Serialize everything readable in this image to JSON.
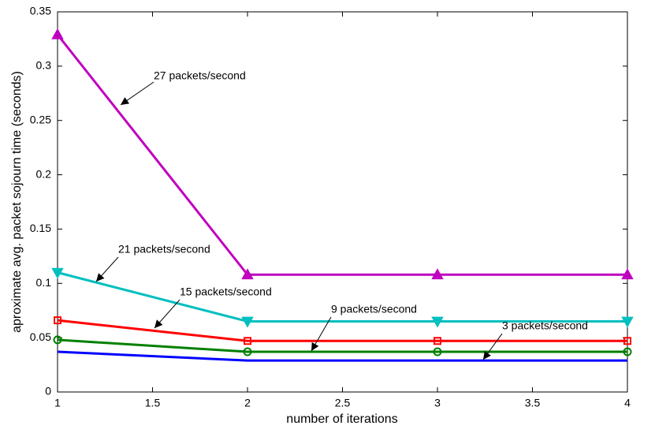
{
  "chart_data": {
    "type": "line",
    "x_label": "number of iterations",
    "y_label": "aproximate avg. packet sojourn time (seconds)",
    "x": [
      1,
      2,
      3,
      4
    ],
    "series": [
      {
        "name": "27 packets/second",
        "color": "#bf00bf",
        "marker": "triangle-up",
        "values": [
          0.329,
          0.108,
          0.108,
          0.108
        ]
      },
      {
        "name": "21 packets/second",
        "color": "#00bfbf",
        "marker": "triangle-down",
        "values": [
          0.11,
          0.065,
          0.065,
          0.065
        ]
      },
      {
        "name": "15 packets/second",
        "color": "#ff0000",
        "marker": "square",
        "values": [
          0.066,
          0.047,
          0.047,
          0.047
        ]
      },
      {
        "name": "9 packets/second",
        "color": "#008000",
        "marker": "circle",
        "values": [
          0.048,
          0.037,
          0.037,
          0.037
        ]
      },
      {
        "name": "3 packets/second",
        "color": "#0000ff",
        "marker": "none",
        "values": [
          0.037,
          0.029,
          0.029,
          0.029
        ]
      }
    ],
    "xlim": [
      1,
      4
    ],
    "xticks": [
      1,
      1.5,
      2,
      2.5,
      3,
      3.5,
      4
    ],
    "ylim": [
      0,
      0.35
    ],
    "yticks": [
      0,
      0.05,
      0.1,
      0.15,
      0.2,
      0.25,
      0.3,
      0.35
    ],
    "grid": false
  }
}
